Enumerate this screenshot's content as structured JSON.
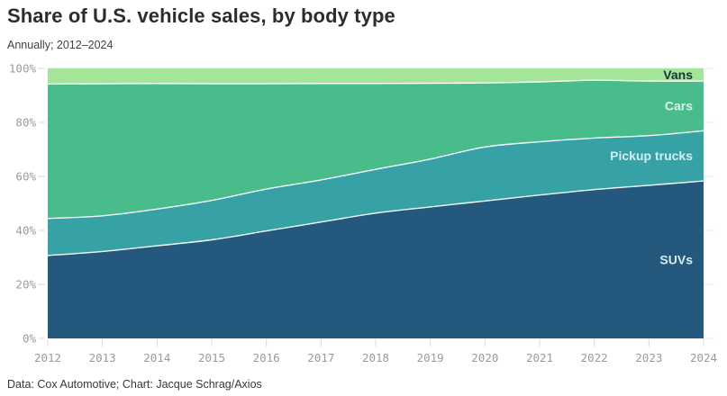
{
  "header": {
    "title": "Share of U.S. vehicle sales, by body type",
    "subtitle": "Annually; 2012–2024"
  },
  "footer": {
    "credit": "Data: Cox Automotive; Chart: Jacque Schrag/Axios"
  },
  "chart_data": {
    "type": "area",
    "stacked": true,
    "unit": "%",
    "title": "Share of U.S. vehicle sales, by body type",
    "x": [
      2012,
      2013,
      2014,
      2015,
      2016,
      2017,
      2018,
      2019,
      2020,
      2021,
      2022,
      2023,
      2024
    ],
    "series": [
      {
        "name": "SUVs",
        "color": "#24587c",
        "label_color": "#d5ecf1",
        "values": [
          30.7,
          32.2,
          34.3,
          36.5,
          39.8,
          43.1,
          46.4,
          48.7,
          50.9,
          53.1,
          55.1,
          56.7,
          58.3
        ]
      },
      {
        "name": "Pickup trucks",
        "color": "#37a2a6",
        "label_color": "#d5ecf1",
        "values": [
          13.7,
          13.2,
          13.6,
          14.6,
          15.5,
          15.6,
          16.2,
          17.7,
          20.0,
          19.7,
          19.1,
          18.4,
          18.6
        ]
      },
      {
        "name": "Cars",
        "color": "#49bc8b",
        "label_color": "#d9f1ec",
        "values": [
          49.8,
          48.9,
          46.5,
          43.2,
          39.0,
          35.7,
          31.8,
          28.1,
          23.7,
          22.2,
          21.4,
          20.2,
          18.4
        ]
      },
      {
        "name": "Vans",
        "color": "#a5e59a",
        "label_color": "#16323f",
        "values": [
          5.8,
          5.7,
          5.6,
          5.7,
          5.7,
          5.6,
          5.6,
          5.5,
          5.4,
          5.0,
          4.4,
          4.7,
          4.7
        ]
      }
    ],
    "stack_order_bottom_to_top": [
      "SUVs",
      "Pickup trucks",
      "Cars",
      "Vans"
    ],
    "ylim": [
      0,
      100
    ],
    "yticks": [
      0,
      20,
      40,
      60,
      80,
      100
    ],
    "ytick_labels": [
      "0%",
      "20%",
      "40%",
      "60%",
      "80%",
      "100%"
    ],
    "xtick_labels": [
      "2012",
      "2013",
      "2014",
      "2015",
      "2016",
      "2017",
      "2018",
      "2019",
      "2020",
      "2021",
      "2022",
      "2023",
      "2024"
    ],
    "grid": true,
    "legend": "direct-labels-inside-right",
    "colors": {
      "grid_line": "#e8e8e8",
      "tick_mark": "#d8d8d8",
      "axis_text": "#9b9b9b",
      "boundary_stroke": "#ffffff",
      "background": "#ffffff",
      "title_text": "#2d2d2d"
    }
  }
}
